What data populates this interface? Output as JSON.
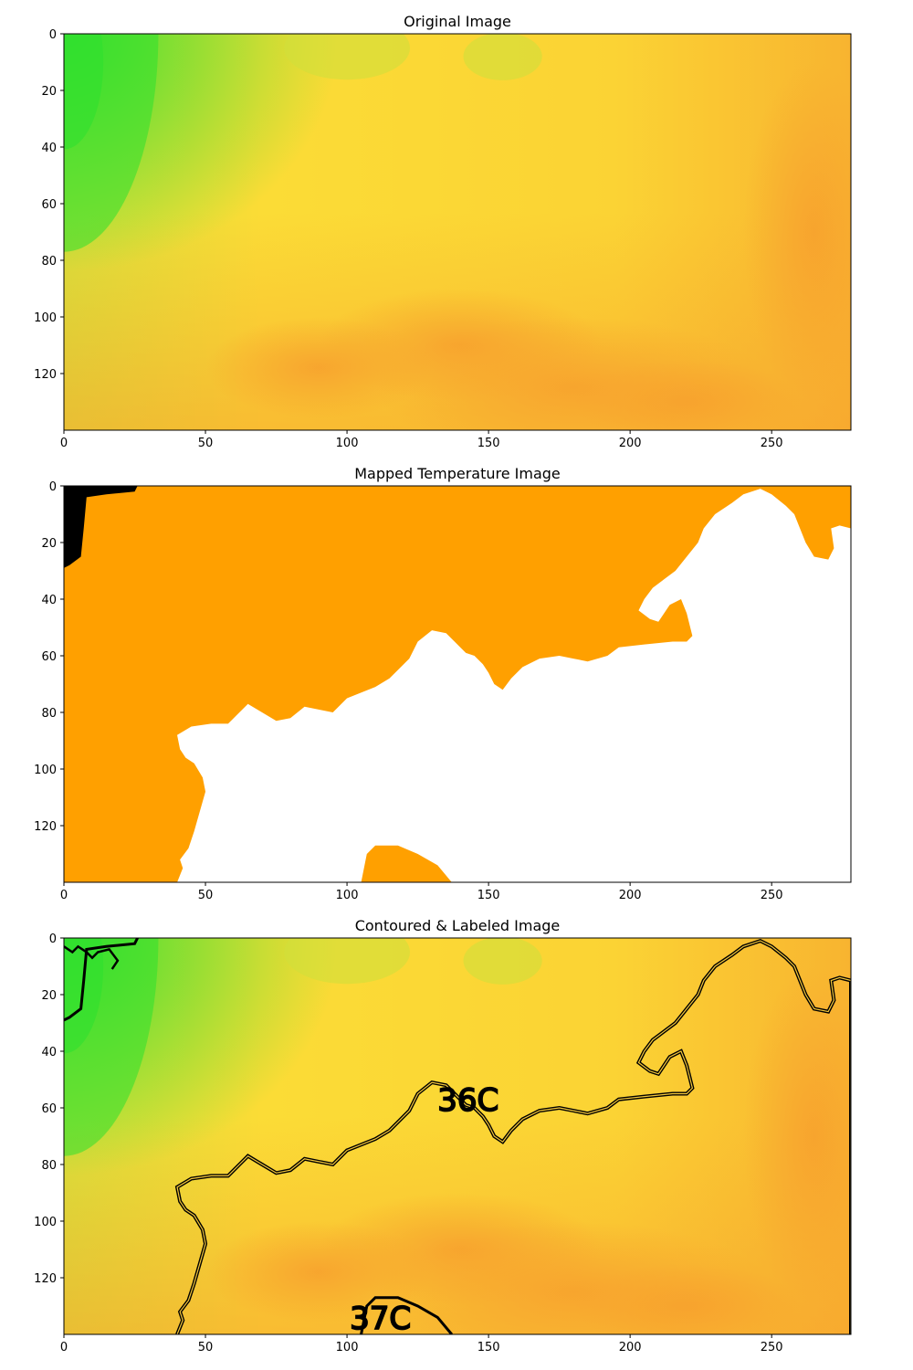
{
  "chart_data": [
    {
      "type": "heatmap",
      "title": "Original Image",
      "xlim": [
        0,
        278
      ],
      "ylim": [
        140,
        0
      ],
      "x_ticks": [
        0,
        50,
        100,
        150,
        200,
        250
      ],
      "y_ticks": [
        0,
        20,
        40,
        60,
        80,
        100,
        120
      ],
      "colormap": {
        "green": "#2ee02e",
        "yellow": "#fbdc36",
        "orange": "#f7a22e"
      },
      "contours": false
    },
    {
      "type": "heatmap",
      "title": "Mapped Temperature Image",
      "xlim": [
        0,
        278
      ],
      "ylim": [
        140,
        0
      ],
      "x_ticks": [
        0,
        50,
        100,
        150,
        200,
        250
      ],
      "y_ticks": [
        0,
        20,
        40,
        60,
        80,
        100,
        120
      ],
      "regions": [
        {
          "color": "#000000"
        },
        {
          "color": "#ffa000"
        },
        {
          "color": "#ffffff"
        }
      ]
    },
    {
      "type": "heatmap",
      "title": "Contoured & Labeled Image",
      "xlim": [
        0,
        278
      ],
      "ylim": [
        140,
        0
      ],
      "x_ticks": [
        0,
        50,
        100,
        150,
        200,
        250
      ],
      "y_ticks": [
        0,
        20,
        40,
        60,
        80,
        100,
        120
      ],
      "contours": true,
      "labels": [
        {
          "text": "36C",
          "x": 132,
          "y": 61
        },
        {
          "text": "37C",
          "x": 101,
          "y": 138
        }
      ]
    }
  ]
}
